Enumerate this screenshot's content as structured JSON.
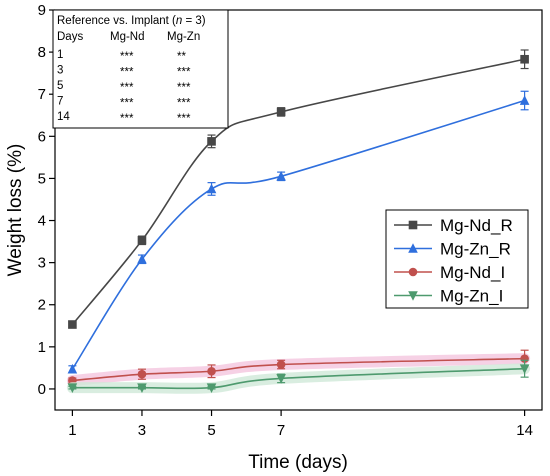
{
  "chart_data": {
    "type": "line",
    "xlabel": "Time (days)",
    "ylabel": "Weight loss (%)",
    "x": [
      1,
      3,
      5,
      7,
      14
    ],
    "xticks": [
      "1",
      "3",
      "5",
      "7",
      "14"
    ],
    "xlim": [
      0.5,
      14.5
    ],
    "ylim": [
      -0.5,
      9
    ],
    "yticks": [
      0,
      1,
      2,
      3,
      4,
      5,
      6,
      7,
      8,
      9
    ],
    "grid": false,
    "legend_position": "right",
    "series": [
      {
        "name": "Mg-Nd_R",
        "marker": "square",
        "color": "#474747",
        "values": [
          1.53,
          3.53,
          5.88,
          6.58,
          7.83
        ],
        "errors": [
          0.08,
          0.1,
          0.15,
          0.1,
          0.22
        ]
      },
      {
        "name": "Mg-Zn_R",
        "marker": "triangle-up",
        "color": "#2f6fdd",
        "values": [
          0.47,
          3.08,
          4.75,
          5.05,
          6.85
        ],
        "errors": [
          0.08,
          0.1,
          0.15,
          0.1,
          0.22
        ]
      },
      {
        "name": "Mg-Nd_I",
        "marker": "circle",
        "color": "#c0504d",
        "values": [
          0.2,
          0.35,
          0.42,
          0.58,
          0.72
        ],
        "errors": [
          0.06,
          0.12,
          0.15,
          0.1,
          0.2
        ]
      },
      {
        "name": "Mg-Zn_I",
        "marker": "triangle-down",
        "color": "#4e9a6e",
        "values": [
          0.03,
          0.03,
          0.03,
          0.25,
          0.48
        ],
        "errors": [
          0.03,
          0.03,
          0.03,
          0.1,
          0.2
        ]
      }
    ],
    "annotation_table": {
      "title_prefix": "Reference vs. Implant (",
      "title_n": "n",
      "title_suffix": " = 3)",
      "headers": [
        "Days",
        "Mg-Nd",
        "Mg-Zn"
      ],
      "rows": [
        [
          "1",
          "***",
          "**"
        ],
        [
          "3",
          "***",
          "***"
        ],
        [
          "5",
          "***",
          "***"
        ],
        [
          "7",
          "***",
          "***"
        ],
        [
          "14",
          "***",
          "***"
        ]
      ]
    }
  }
}
